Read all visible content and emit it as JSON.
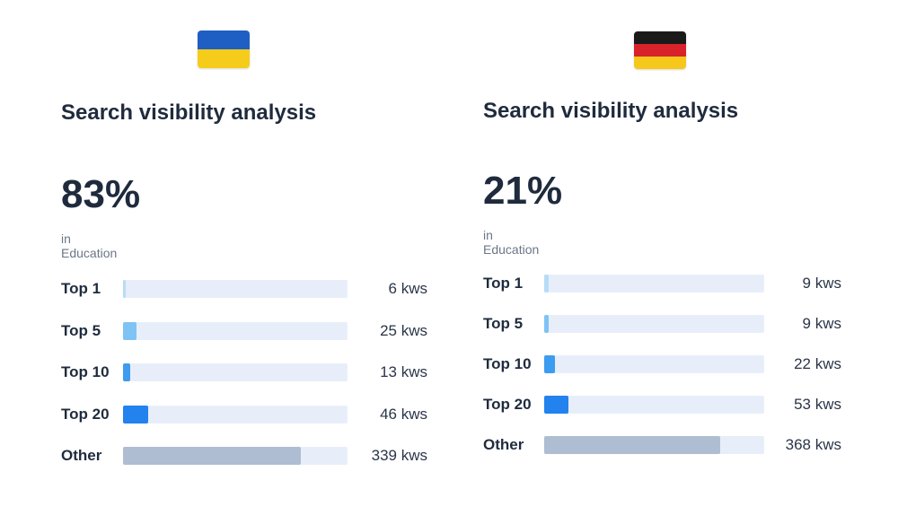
{
  "panels": [
    {
      "flag_icon": "ukraine-flag-icon",
      "flag_colors": [
        "#1f5fc4",
        "#f5cc1a"
      ],
      "title": "Search visibility analysis",
      "percent": "83%",
      "subtitle": "in Education",
      "rows": [
        {
          "label": "Top 1",
          "value": "6 kws",
          "fill": 0.01,
          "color": "#b7dcf7"
        },
        {
          "label": "Top 5",
          "value": "25 kws",
          "fill": 0.06,
          "color": "#7fc3f5"
        },
        {
          "label": "Top 10",
          "value": "13 kws",
          "fill": 0.03,
          "color": "#3d9bf0"
        },
        {
          "label": "Top 20",
          "value": "46 kws",
          "fill": 0.11,
          "color": "#2282ee"
        },
        {
          "label": "Other",
          "value": "339 kws",
          "fill": 0.79,
          "color": "#aebdd2"
        }
      ]
    },
    {
      "flag_icon": "germany-flag-icon",
      "flag_colors": [
        "#1a1a1a",
        "#d8232a",
        "#f6c81c"
      ],
      "title": "Search visibility analysis",
      "percent": "21%",
      "subtitle": "in Education",
      "rows": [
        {
          "label": "Top 1",
          "value": "9 kws",
          "fill": 0.02,
          "color": "#b7dcf7"
        },
        {
          "label": "Top 5",
          "value": "9 kws",
          "fill": 0.02,
          "color": "#7fc3f5"
        },
        {
          "label": "Top 10",
          "value": "22 kws",
          "fill": 0.05,
          "color": "#3d9bf0"
        },
        {
          "label": "Top 20",
          "value": "53 kws",
          "fill": 0.11,
          "color": "#2282ee"
        },
        {
          "label": "Other",
          "value": "368 kws",
          "fill": 0.8,
          "color": "#aebdd2"
        }
      ]
    }
  ]
}
